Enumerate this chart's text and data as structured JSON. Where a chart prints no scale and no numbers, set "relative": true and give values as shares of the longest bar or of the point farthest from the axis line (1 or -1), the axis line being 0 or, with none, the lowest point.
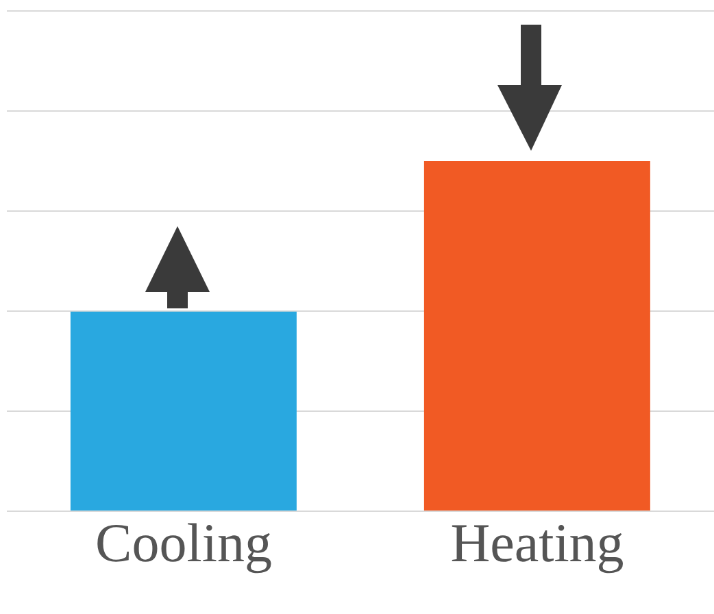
{
  "chart_data": {
    "type": "bar",
    "relative": true,
    "categories": [
      "Cooling",
      "Heating"
    ],
    "values": [
      0.57,
      1
    ],
    "colors": [
      "#29a8e0",
      "#f15a24"
    ],
    "grid": "y"
  }
}
